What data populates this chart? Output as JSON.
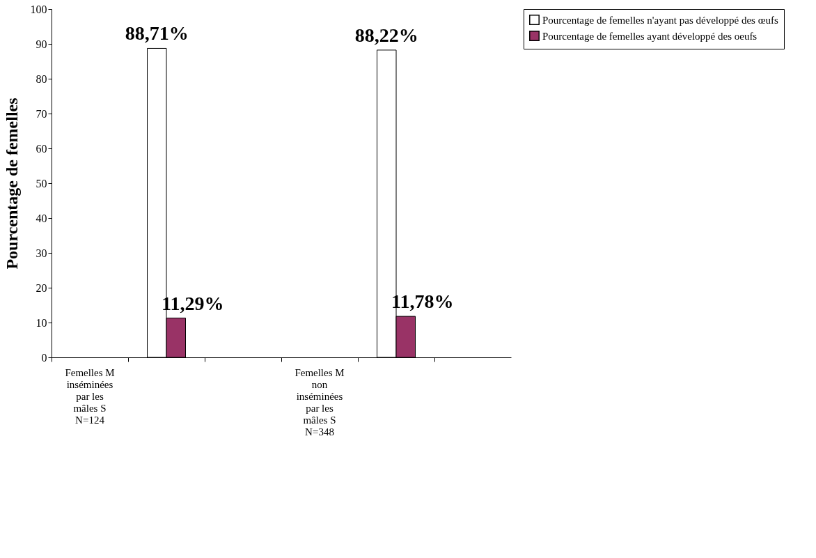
{
  "chart_data": {
    "type": "bar",
    "ylabel": "Pourcentage de femelles",
    "categories": [
      "Femelles M inséminées par les mâles S N=124",
      null,
      null,
      "Femelles M non inséminées par les mâles S N=348",
      null,
      null
    ],
    "series": [
      {
        "name": "Pourcentage de femelles n'ayant pas développé des œufs",
        "color": "#ffffff",
        "values": [
          null,
          88.71,
          null,
          null,
          88.22,
          null
        ],
        "value_labels": [
          null,
          "88,71%",
          null,
          null,
          "88,22%",
          null
        ]
      },
      {
        "name": "Pourcentage de femelles ayant développé des oeufs",
        "color": "#993366",
        "values": [
          null,
          11.29,
          null,
          null,
          11.78,
          null
        ],
        "value_labels": [
          null,
          "11,29%",
          null,
          null,
          "11,78%",
          null
        ]
      }
    ],
    "ylim": [
      0,
      100
    ],
    "yticks": [
      0,
      10,
      20,
      30,
      40,
      50,
      60,
      70,
      80,
      90,
      100
    ],
    "grid": false,
    "legend": "right"
  }
}
